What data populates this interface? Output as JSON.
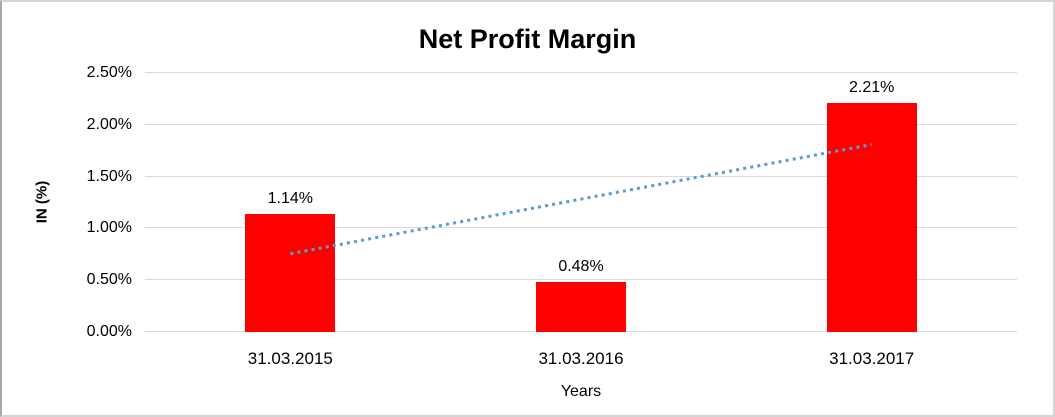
{
  "chart_data": {
    "type": "bar",
    "title": "Net Profit Margin",
    "categories": [
      "31.03.2015",
      "31.03.2016",
      "31.03.2017"
    ],
    "values": [
      1.14,
      0.48,
      2.21
    ],
    "data_labels": [
      "1.14%",
      "0.48%",
      "2.21%"
    ],
    "xlabel": "Years",
    "ylabel": "IN (%)",
    "ylim": [
      0,
      2.5
    ],
    "ytick_step": 0.5,
    "ytick_labels": [
      "0.00%",
      "0.50%",
      "1.00%",
      "1.50%",
      "2.00%",
      "2.50%"
    ],
    "grid": true,
    "legend": "none",
    "bar_color": "#ff0000",
    "gridline_color": "#d9d9d9",
    "text_color": "#000000",
    "trendline": {
      "style": "dotted",
      "color": "#5b9bd5",
      "start_value": 0.755,
      "end_value": 1.81
    }
  }
}
